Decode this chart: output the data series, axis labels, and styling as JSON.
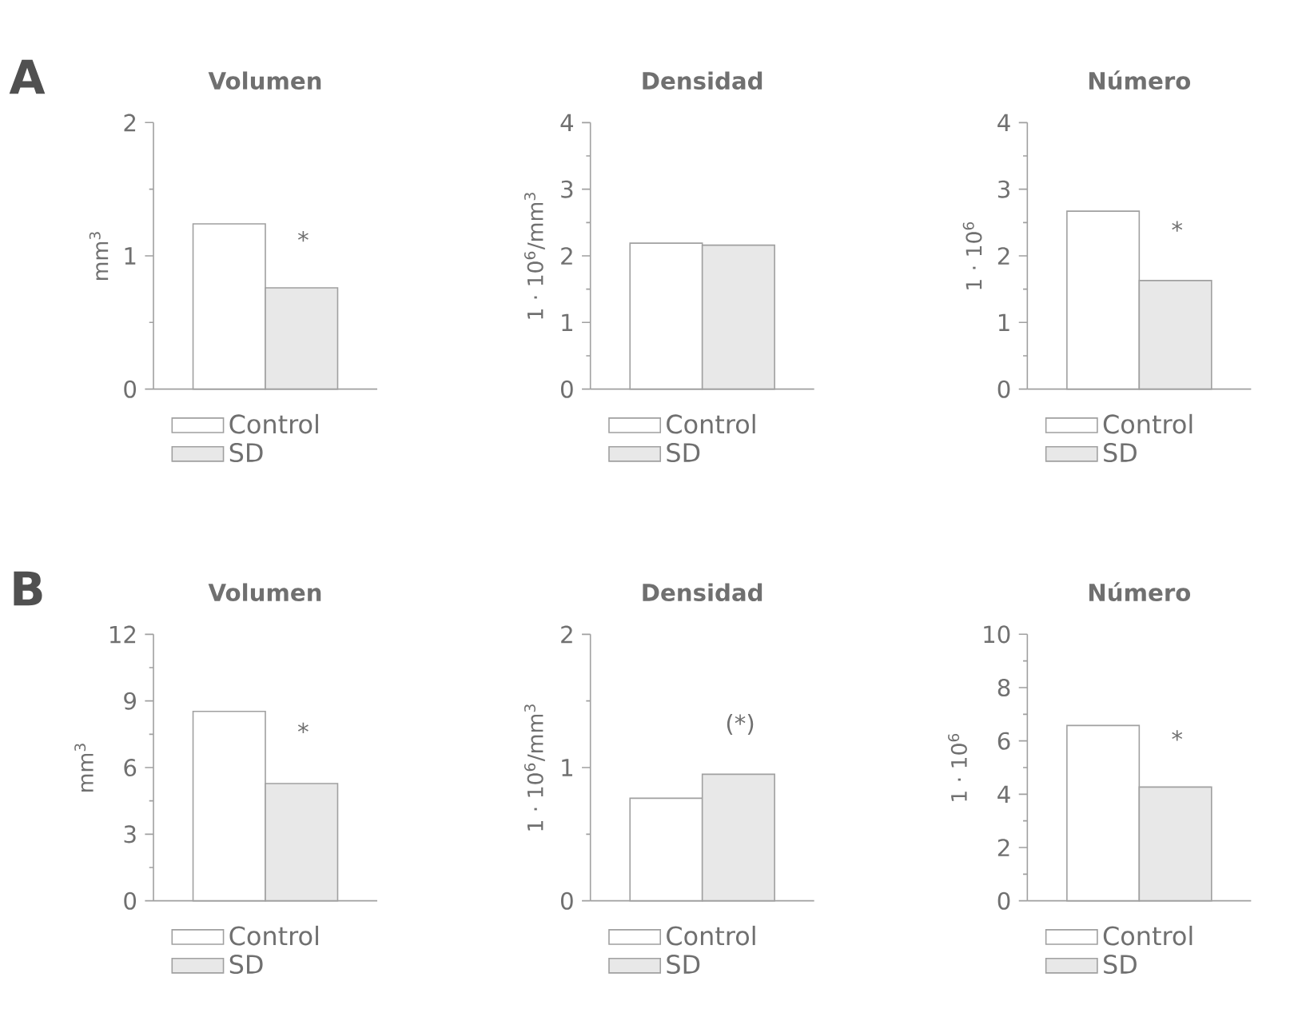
{
  "chart_data": [
    {
      "type": "bar",
      "title": "Volumen",
      "ylabel": "mm$^{3}$",
      "categories": [
        null
      ],
      "legend": "bottom",
      "tick_labels": "y",
      "annotations": [
        "A",
        "*"
      ],
      "ylim": [
        0,
        2
      ],
      "yticks": [
        0,
        1,
        2
      ],
      "series": [
        {
          "name": "Control",
          "color": "#ffffff",
          "values": [
            1.24
          ]
        },
        {
          "name": "SD",
          "color": "#e8e8e8",
          "values": [
            0.76
          ]
        }
      ]
    },
    {
      "type": "bar",
      "title": "Densidad",
      "ylabel": "1 · 10$^{6}$/mm$^{3}$",
      "categories": [
        null
      ],
      "legend": "bottom",
      "tick_labels": "y",
      "ylim": [
        0,
        4
      ],
      "yticks": [
        0,
        1,
        2,
        3,
        4
      ],
      "series": [
        {
          "name": "Control",
          "color": "#ffffff",
          "values": [
            2.19
          ]
        },
        {
          "name": "SD",
          "color": "#e8e8e8",
          "values": [
            2.16
          ]
        }
      ]
    },
    {
      "type": "bar",
      "title": "Número",
      "ylabel": "1 · 10$^{6}$",
      "categories": [
        null
      ],
      "legend": "bottom",
      "tick_labels": "y",
      "annotations": [
        "*"
      ],
      "ylim": [
        0,
        4
      ],
      "yticks": [
        0,
        1,
        2,
        3,
        4
      ],
      "series": [
        {
          "name": "Control",
          "color": "#ffffff",
          "values": [
            2.67
          ]
        },
        {
          "name": "SD",
          "color": "#e8e8e8",
          "values": [
            1.63
          ]
        }
      ]
    },
    {
      "type": "bar",
      "title": "Volumen",
      "ylabel": "mm$^{3}$",
      "categories": [
        null
      ],
      "legend": "bottom",
      "tick_labels": "y",
      "annotations": [
        "B",
        "*"
      ],
      "ylim": [
        0,
        12
      ],
      "yticks": [
        0,
        3,
        6,
        9,
        12
      ],
      "series": [
        {
          "name": "Control",
          "color": "#ffffff",
          "values": [
            8.53
          ]
        },
        {
          "name": "SD",
          "color": "#e8e8e8",
          "values": [
            5.28
          ]
        }
      ]
    },
    {
      "type": "bar",
      "title": "Densidad",
      "ylabel": "1 · 10$^{6}$/mm$^{3}$",
      "categories": [
        null
      ],
      "legend": "bottom",
      "tick_labels": "y",
      "annotations": [
        "(*)"
      ],
      "ylim": [
        0,
        2
      ],
      "yticks": [
        0,
        1,
        2
      ],
      "series": [
        {
          "name": "Control",
          "color": "#ffffff",
          "values": [
            0.77
          ]
        },
        {
          "name": "SD",
          "color": "#e8e8e8",
          "values": [
            0.95
          ]
        }
      ]
    },
    {
      "type": "bar",
      "title": "Número",
      "ylabel": "1 · 10$^{6}$",
      "categories": [
        null
      ],
      "legend": "bottom",
      "tick_labels": "y",
      "annotations": [
        "*"
      ],
      "ylim": [
        0,
        10
      ],
      "yticks": [
        0,
        2,
        4,
        6,
        8,
        10
      ],
      "series": [
        {
          "name": "Control",
          "color": "#ffffff",
          "values": [
            6.58
          ]
        },
        {
          "name": "SD",
          "color": "#e8e8e8",
          "values": [
            4.27
          ]
        }
      ]
    }
  ]
}
